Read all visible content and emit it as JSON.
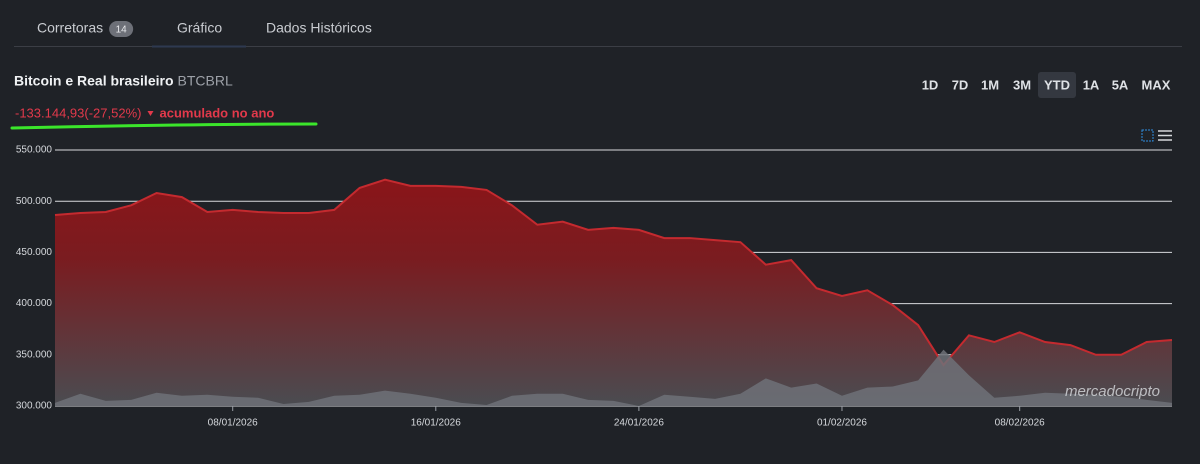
{
  "tabs": [
    {
      "label": "Corretoras",
      "badge": 14
    },
    {
      "label": "Gráfico"
    },
    {
      "label": "Dados Históricos"
    }
  ],
  "header": {
    "title": "Bitcoin e Real brasileiro",
    "ticker": "BTCBRL",
    "change": "-133.144,93(-27,52%)",
    "change_note": "acumulado no ano"
  },
  "ranges": [
    {
      "label": "1D"
    },
    {
      "label": "7D"
    },
    {
      "label": "1M"
    },
    {
      "label": "3M"
    },
    {
      "label": "YTD",
      "active": true
    },
    {
      "label": "1A"
    },
    {
      "label": "5A"
    },
    {
      "label": "MAX"
    }
  ],
  "watermark": "mercadocripto",
  "chart_data": {
    "type": "area",
    "x": [
      "01/01/2026",
      "02/01/2026",
      "03/01/2026",
      "04/01/2026",
      "05/01/2026",
      "06/01/2026",
      "07/01/2026",
      "08/01/2026",
      "09/01/2026",
      "10/01/2026",
      "11/01/2026",
      "12/01/2026",
      "13/01/2026",
      "14/01/2026",
      "15/01/2026",
      "16/01/2026",
      "17/01/2026",
      "18/01/2026",
      "19/01/2026",
      "20/01/2026",
      "21/01/2026",
      "22/01/2026",
      "23/01/2026",
      "24/01/2026",
      "25/01/2026",
      "26/01/2026",
      "27/01/2026",
      "28/01/2026",
      "29/01/2026",
      "30/01/2026",
      "31/01/2026",
      "01/02/2026",
      "02/02/2026",
      "03/02/2026",
      "04/02/2026",
      "05/02/2026",
      "06/02/2026",
      "07/02/2026",
      "08/02/2026",
      "09/02/2026",
      "10/02/2026",
      "11/02/2026",
      "12/02/2026",
      "13/02/2026",
      "14/02/2026"
    ],
    "series": [
      {
        "color": "#c42a2f",
        "values": [
          486500,
          488500,
          489500,
          496000,
          508000,
          504000,
          489500,
          491500,
          489500,
          488500,
          488500,
          491500,
          513000,
          521000,
          515000,
          515000,
          514000,
          511000,
          496000,
          477000,
          480000,
          472000,
          474000,
          472000,
          464000,
          464000,
          462000,
          460000,
          438000,
          442500,
          415000,
          407500,
          413000,
          398500,
          379000,
          340000,
          369000,
          362500,
          372000,
          362500,
          359500,
          350000,
          350000,
          362500,
          364500
        ]
      },
      {
        "color": "#6e7178",
        "values": [
          303000,
          312000,
          305000,
          306000,
          313000,
          310000,
          311000,
          309000,
          308000,
          302000,
          304000,
          310000,
          311000,
          315000,
          312000,
          308000,
          303000,
          301000,
          310000,
          312000,
          312000,
          306000,
          305000,
          300000,
          311000,
          309000,
          307000,
          312000,
          327000,
          318000,
          322000,
          310000,
          318000,
          319000,
          325000,
          355000,
          330000,
          308000,
          310000,
          313000,
          312000,
          311000,
          309000,
          306000,
          303000
        ]
      }
    ],
    "xlim": [
      "01/01/2026",
      "14/02/2026"
    ],
    "xticks": [
      "08/01/2026",
      "16/01/2026",
      "24/01/2026",
      "01/02/2026",
      "08/02/2026"
    ],
    "ylim": [
      300000,
      550000
    ],
    "yticks": [
      {
        "value": 300000,
        "label": "300.000"
      },
      {
        "value": 350000,
        "label": "350.000"
      },
      {
        "value": 400000,
        "label": "400.000"
      },
      {
        "value": 450000,
        "label": "450.000"
      },
      {
        "value": 500000,
        "label": "500.000"
      },
      {
        "value": 550000,
        "label": "550.000"
      }
    ],
    "grid": true
  }
}
